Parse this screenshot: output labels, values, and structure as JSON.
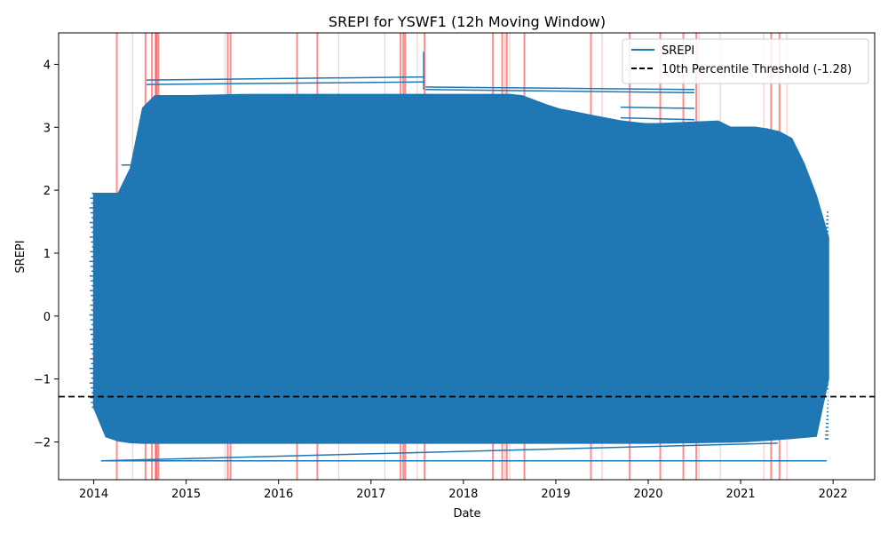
{
  "chart_data": {
    "type": "line",
    "title": "SREPI for YSWF1 (12h Moving Window)",
    "xlabel": "Date",
    "ylabel": "SREPI",
    "xlim": [
      2013.62,
      2022.45
    ],
    "ylim": [
      -2.6,
      4.5
    ],
    "x_ticks": [
      2014,
      2015,
      2016,
      2017,
      2018,
      2019,
      2020,
      2021,
      2022
    ],
    "x_tick_labels": [
      "2014",
      "2015",
      "2016",
      "2017",
      "2018",
      "2019",
      "2020",
      "2021",
      "2022"
    ],
    "y_ticks": [
      -2,
      -1,
      0,
      1,
      2,
      3,
      4
    ],
    "y_tick_labels": [
      "−2",
      "−1",
      "0",
      "1",
      "2",
      "3",
      "4"
    ],
    "grid": false,
    "legend_position": "top-right",
    "series": [
      {
        "name": "SREPI",
        "color": "#1f77b4",
        "x_range": [
          2014.0,
          2021.95
        ],
        "y_range": [
          -2.3,
          4.2
        ],
        "upper_envelope": {
          "x": [
            2014.0,
            2014.3,
            2014.31,
            2014.5,
            2014.51,
            2014.6,
            2015.0,
            2015.6,
            2016.0,
            2017.0,
            2017.58,
            2017.6,
            2018.0,
            2018.6,
            2019.0,
            2019.7,
            2020.0,
            2020.8,
            2020.81,
            2021.2,
            2021.5,
            2021.6,
            2021.9,
            2021.95
          ],
          "y": [
            1.95,
            1.95,
            2.3,
            2.4,
            3.25,
            3.5,
            3.5,
            3.52,
            3.52,
            3.52,
            3.52,
            3.52,
            3.52,
            3.52,
            3.3,
            3.1,
            3.05,
            3.1,
            3.0,
            3.0,
            2.9,
            2.75,
            1.6,
            1.25
          ]
        },
        "lower_envelope": {
          "x": [
            2014.0,
            2014.1,
            2014.3,
            2014.5,
            2015.0,
            2016.0,
            2017.0,
            2018.0,
            2019.0,
            2020.0,
            2021.0,
            2021.5,
            2021.9,
            2021.95
          ],
          "y": [
            -1.45,
            -1.9,
            -2.0,
            -2.02,
            -2.02,
            -2.02,
            -2.02,
            -2.02,
            -2.02,
            -2.02,
            -2.0,
            -1.95,
            -1.9,
            -1.0
          ]
        },
        "long_segments": [
          {
            "x": [
              2014.08,
              2021.93
            ],
            "y": [
              -2.3,
              -2.3
            ]
          },
          {
            "x": [
              2014.08,
              2021.4
            ],
            "y": [
              -2.3,
              -2.02
            ]
          },
          {
            "x": [
              2014.57,
              2017.58
            ],
            "y": [
              3.75,
              3.8
            ]
          },
          {
            "x": [
              2014.57,
              2017.58
            ],
            "y": [
              3.68,
              3.72
            ]
          },
          {
            "x": [
              2017.59,
              2020.5
            ],
            "y": [
              3.64,
              3.6
            ]
          },
          {
            "x": [
              2017.59,
              2020.5
            ],
            "y": [
              3.6,
              3.55
            ]
          },
          {
            "x": [
              2017.57,
              2017.57
            ],
            "y": [
              3.6,
              4.2
            ]
          },
          {
            "x": [
              2019.7,
              2020.5
            ],
            "y": [
              3.32,
              3.3
            ]
          },
          {
            "x": [
              2019.7,
              2020.5
            ],
            "y": [
              3.15,
              3.12
            ]
          },
          {
            "x": [
              2014.5,
              2015.55
            ],
            "y": [
              3.0,
              3.0
            ]
          },
          {
            "x": [
              2014.3,
              2015.3
            ],
            "y": [
              2.4,
              2.4
            ]
          },
          {
            "x": [
              2014.5,
              2015.1
            ],
            "y": [
              2.7,
              2.7
            ]
          }
        ]
      },
      {
        "name": "10th Percentile Threshold (-1.28)",
        "color": "#000000",
        "style": "dashed",
        "y": -1.28
      }
    ],
    "highlight_spans": {
      "color": "#ff0000",
      "note": "extreme events",
      "x_strong": [
        2014.25,
        2014.56,
        2014.63,
        2014.67,
        2014.68,
        2014.7,
        2015.45,
        2015.48,
        2016.2,
        2016.42,
        2017.32,
        2017.35,
        2017.37,
        2017.58,
        2018.32,
        2018.42,
        2018.47,
        2018.66,
        2019.38,
        2019.8,
        2020.13,
        2020.38,
        2020.52,
        2021.33,
        2021.42
      ],
      "x_faint": [
        2014.42,
        2015.42,
        2016.65,
        2017.15,
        2017.5,
        2018.45,
        2018.5,
        2019.5,
        2020.55,
        2020.78,
        2021.25,
        2021.5
      ]
    },
    "legend": [
      {
        "label": "SREPI",
        "style": "solid",
        "color": "#1f77b4"
      },
      {
        "label": "10th Percentile Threshold (-1.28)",
        "style": "dashed",
        "color": "#000000"
      }
    ]
  }
}
